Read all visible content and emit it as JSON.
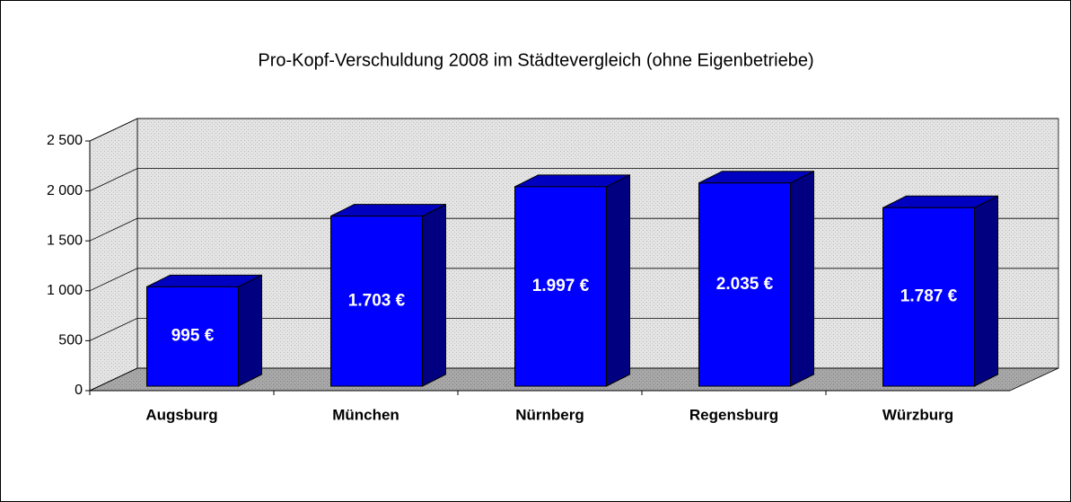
{
  "chart_data": {
    "type": "bar3d",
    "title": "Pro-Kopf-Verschuldung 2008 im Städtevergleich (ohne Eigenbetriebe)",
    "categories": [
      "Augsburg",
      "München",
      "Nürnberg",
      "Regensburg",
      "Würzburg"
    ],
    "values": [
      995,
      1703,
      1997,
      2035,
      1787
    ],
    "value_labels": [
      "995 €",
      "1.703 €",
      "1.997 €",
      "2.035 €",
      "1.787 €"
    ],
    "color": "#0000ff",
    "ylim": [
      0,
      2500
    ],
    "yticks": [
      0,
      500,
      {
        "value": 1000,
        "label": "1 000"
      },
      {
        "value": 1500,
        "label": "1 500"
      },
      {
        "value": 2000,
        "label": "2 000"
      },
      {
        "value": 2500,
        "label": "2 500"
      }
    ],
    "grid": true
  }
}
